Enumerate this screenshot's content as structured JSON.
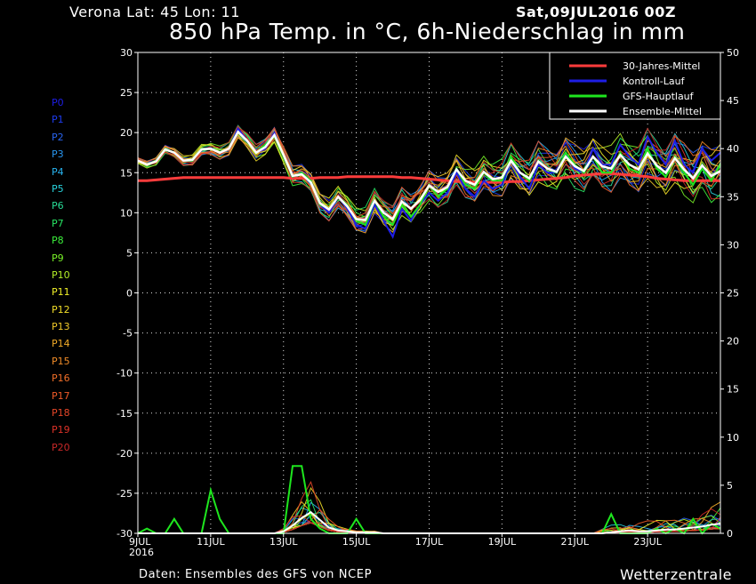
{
  "header": {
    "location": "Verona   Lat: 45 Lon: 11",
    "date": "Sat,09JUL2016 00Z",
    "title": "850 hPa Temp. in °C, 6h-Niederschlag in mm"
  },
  "footer": {
    "credit": "Daten: Ensembles des GFS von NCEP",
    "brand": "Wetterzentrale"
  },
  "members": [
    {
      "label": "P0",
      "color": "#1e1ee6"
    },
    {
      "label": "P1",
      "color": "#1e3cf0"
    },
    {
      "label": "P2",
      "color": "#2864f0"
    },
    {
      "label": "P3",
      "color": "#2896f0"
    },
    {
      "label": "P4",
      "color": "#28b4f0"
    },
    {
      "label": "P5",
      "color": "#28d2dc"
    },
    {
      "label": "P6",
      "color": "#28dc96"
    },
    {
      "label": "P7",
      "color": "#28e664"
    },
    {
      "label": "P8",
      "color": "#3cf03c"
    },
    {
      "label": "P9",
      "color": "#78f028"
    },
    {
      "label": "P10",
      "color": "#b4f028"
    },
    {
      "label": "P11",
      "color": "#f0f028"
    },
    {
      "label": "P12",
      "color": "#f0dc28"
    },
    {
      "label": "P13",
      "color": "#f0c828"
    },
    {
      "label": "P14",
      "color": "#f0aa28"
    },
    {
      "label": "P15",
      "color": "#f08c28"
    },
    {
      "label": "P16",
      "color": "#f06e28"
    },
    {
      "label": "P17",
      "color": "#f05a28"
    },
    {
      "label": "P18",
      "color": "#e64628"
    },
    {
      "label": "P19",
      "color": "#dc3228"
    },
    {
      "label": "P20",
      "color": "#c82828"
    }
  ],
  "chart_data": {
    "type": "line",
    "x_ticks": [
      "9JUL",
      "11JUL",
      "13JUL",
      "15JUL",
      "17JUL",
      "19JUL",
      "21JUL",
      "23JUL"
    ],
    "x_tick_year": "2016",
    "x_range_days": [
      0,
      16
    ],
    "y_left_range": [
      -30,
      30
    ],
    "y_left_ticks": [
      30,
      25,
      20,
      15,
      10,
      5,
      0,
      -5,
      -10,
      -15,
      -20,
      -25,
      -30
    ],
    "y_right_range": [
      0,
      50
    ],
    "y_right_ticks": [
      50,
      45,
      40,
      35,
      30,
      25,
      20,
      15,
      10,
      5,
      0
    ],
    "grid": true,
    "legend_position": "top-right",
    "legend": [
      {
        "label": "30-Jahres-Mittel",
        "color": "#ff3c3c"
      },
      {
        "label": "Kontroll-Lauf",
        "color": "#1e1ee6"
      },
      {
        "label": "GFS-Hauptlauf",
        "color": "#1ee61e"
      },
      {
        "label": "Ensemble-Mittel",
        "color": "#ffffff"
      }
    ],
    "temperature_series": {
      "climate_mean": [
        14.0,
        14.0,
        14.1,
        14.2,
        14.3,
        14.4,
        14.4,
        14.4,
        14.4,
        14.4,
        14.4,
        14.4,
        14.4,
        14.4,
        14.4,
        14.4,
        14.4,
        14.3,
        14.3,
        14.3,
        14.4,
        14.4,
        14.4,
        14.5,
        14.5,
        14.5,
        14.5,
        14.5,
        14.5,
        14.4,
        14.4,
        14.3,
        14.2,
        14.1,
        14.0,
        13.9,
        13.9,
        13.8,
        13.8,
        13.8,
        13.8,
        13.9,
        13.9,
        14.0,
        14.1,
        14.2,
        14.3,
        14.4,
        14.6,
        14.7,
        14.8,
        14.9,
        14.9,
        14.8,
        14.7,
        14.6,
        14.5,
        14.3,
        14.2,
        14.1,
        14.0,
        14.0,
        14.0,
        14.0,
        14.0
      ],
      "control_run": [
        16.5,
        16.0,
        16.5,
        18.0,
        17.5,
        16.5,
        16.5,
        18.0,
        18.0,
        17.5,
        18.0,
        20.5,
        19.0,
        17.5,
        18.0,
        20.0,
        17.0,
        14.5,
        15.0,
        14.0,
        11.0,
        10.0,
        12.0,
        10.5,
        8.5,
        8.0,
        11.0,
        9.0,
        7.0,
        10.5,
        9.0,
        11.0,
        12.5,
        11.5,
        12.5,
        15.0,
        13.0,
        12.0,
        14.0,
        13.0,
        13.5,
        16.5,
        14.5,
        13.0,
        16.0,
        15.0,
        15.0,
        17.5,
        15.5,
        15.0,
        18.0,
        16.0,
        16.0,
        18.5,
        17.0,
        16.0,
        19.5,
        17.5,
        16.0,
        19.0,
        16.0,
        15.0,
        18.0,
        16.5,
        17.5
      ],
      "gfs_main": [
        16.5,
        16.0,
        16.5,
        18.0,
        17.5,
        16.5,
        16.5,
        18.0,
        18.0,
        17.5,
        18.0,
        20.0,
        19.0,
        17.5,
        18.5,
        19.5,
        17.0,
        14.5,
        15.0,
        14.0,
        11.0,
        10.5,
        12.0,
        11.0,
        9.0,
        8.5,
        11.5,
        9.5,
        8.5,
        11.0,
        9.5,
        11.0,
        13.5,
        12.0,
        13.0,
        15.5,
        13.5,
        13.0,
        15.0,
        14.0,
        14.0,
        17.0,
        15.0,
        14.0,
        16.5,
        15.5,
        15.0,
        17.5,
        16.0,
        15.0,
        17.0,
        15.0,
        15.0,
        17.5,
        15.5,
        15.0,
        18.0,
        15.5,
        14.5,
        17.0,
        15.0,
        13.5,
        15.5,
        14.0,
        16.0
      ],
      "ensemble_mean": [
        16.5,
        16.0,
        16.4,
        17.9,
        17.5,
        16.5,
        16.6,
        17.9,
        18.0,
        17.5,
        18.0,
        20.1,
        19.0,
        17.5,
        18.2,
        19.7,
        17.2,
        14.6,
        14.8,
        13.8,
        11.2,
        10.4,
        12.0,
        10.8,
        9.2,
        9.1,
        11.5,
        10.0,
        9.2,
        11.4,
        10.5,
        11.6,
        13.4,
        12.6,
        13.2,
        15.4,
        14.0,
        13.5,
        15.1,
        14.2,
        14.4,
        16.5,
        15.0,
        14.3,
        16.4,
        15.5,
        15.1,
        17.0,
        15.8,
        15.2,
        17.0,
        15.8,
        15.5,
        17.2,
        16.0,
        15.4,
        17.4,
        15.9,
        15.0,
        16.8,
        15.4,
        14.3,
        15.9,
        14.6,
        15.2
      ]
    },
    "precip_series": {
      "ensemble_mean_mm": [
        0,
        0,
        0,
        0,
        0,
        0,
        0,
        0,
        0,
        0,
        0,
        0,
        0,
        0,
        0,
        0,
        0.2,
        0.8,
        1.6,
        2.2,
        1.4,
        0.6,
        0.3,
        0.2,
        0.1,
        0.1,
        0.1,
        0,
        0,
        0,
        0,
        0,
        0,
        0,
        0,
        0,
        0,
        0,
        0,
        0,
        0,
        0,
        0,
        0,
        0,
        0,
        0,
        0,
        0,
        0,
        0,
        0,
        0.1,
        0.2,
        0.3,
        0.2,
        0.2,
        0.3,
        0.4,
        0.4,
        0.5,
        0.6,
        0.7,
        0.9,
        1.0
      ],
      "gfs_main_mm": [
        0,
        0.5,
        0,
        0,
        1.5,
        0,
        0,
        0,
        4.5,
        1.5,
        0,
        0,
        0,
        0,
        0,
        0,
        0,
        7.0,
        7.0,
        1.5,
        0.5,
        0,
        0,
        0,
        1.5,
        0,
        0,
        0,
        0,
        0,
        0,
        0,
        0,
        0,
        0,
        0,
        0,
        0,
        0,
        0,
        0,
        0,
        0,
        0,
        0,
        0,
        0,
        0,
        0,
        0,
        0,
        0,
        2.0,
        0,
        0,
        0,
        0,
        0.5,
        0,
        0.5,
        0,
        1.5,
        0,
        1.0,
        0.5
      ]
    }
  }
}
